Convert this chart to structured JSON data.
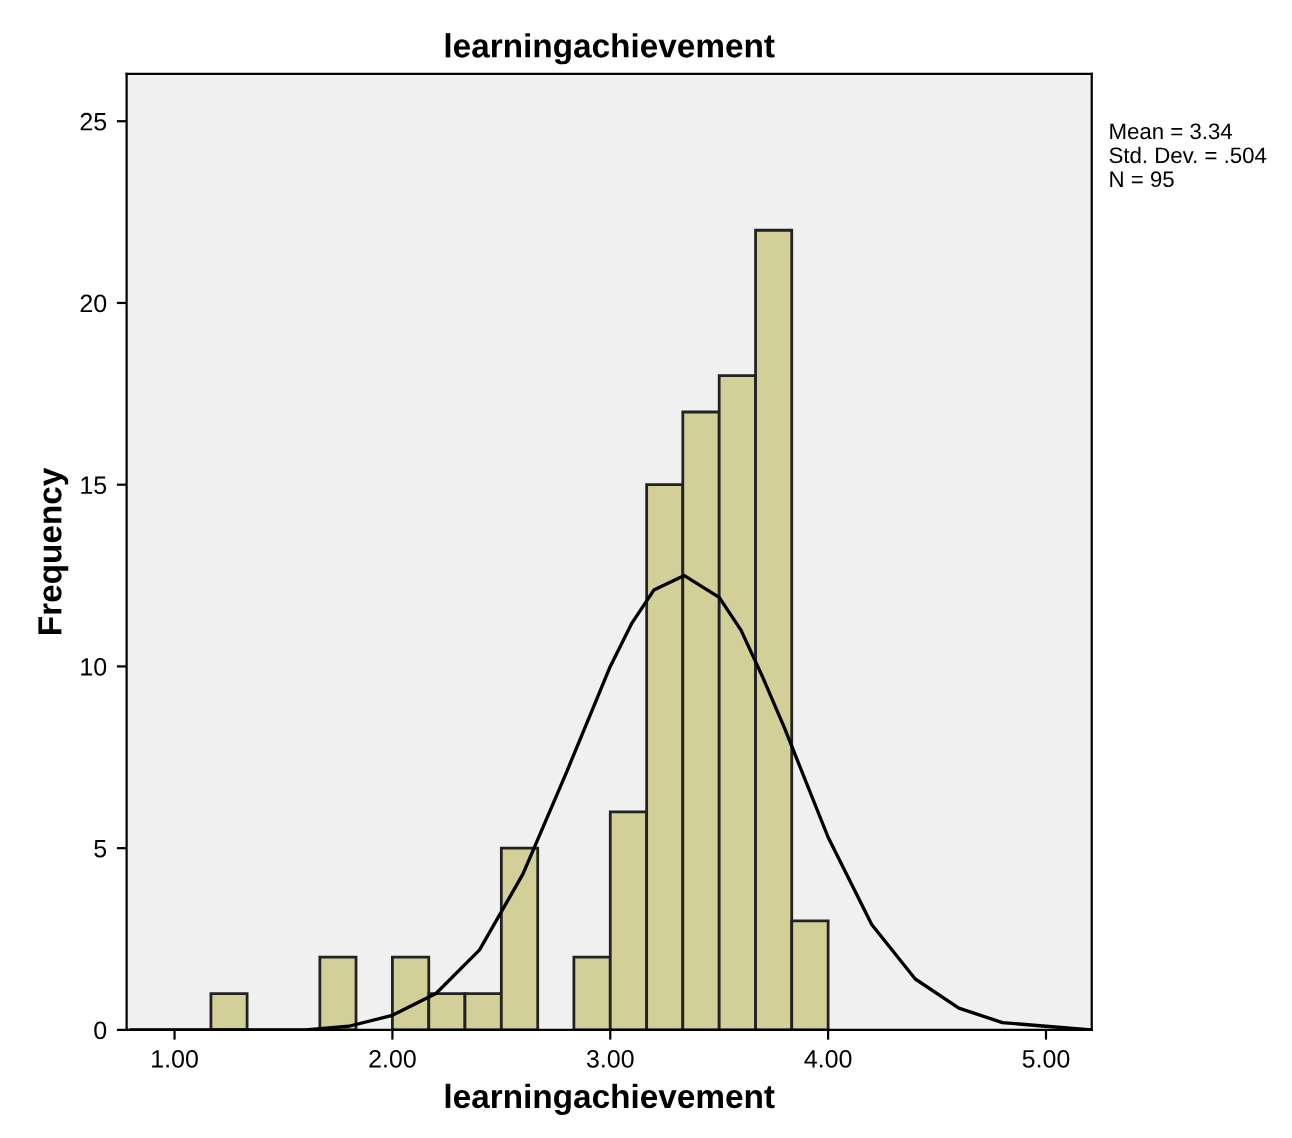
{
  "chart_data": {
    "type": "histogram",
    "title": "learningachievement",
    "xlabel": "learningachievement",
    "ylabel": "Frequency",
    "xlim": [
      0.78,
      5.21
    ],
    "ylim": [
      0,
      26.3
    ],
    "xticks": [
      {
        "value": 1,
        "label": "1.00"
      },
      {
        "value": 2,
        "label": "2.00"
      },
      {
        "value": 3,
        "label": "3.00"
      },
      {
        "value": 4,
        "label": "4.00"
      },
      {
        "value": 5,
        "label": "5.00"
      }
    ],
    "yticks": [
      0,
      5,
      10,
      15,
      20,
      25
    ],
    "grid": false,
    "series": [
      {
        "color": "#d3cf98",
        "bins": [
          1.167,
          1.333,
          1.5,
          1.667,
          1.833,
          2.0,
          2.167,
          2.333,
          2.5,
          2.667,
          2.833,
          3.0,
          3.167,
          3.333,
          3.5,
          3.667,
          3.833,
          4.0
        ],
        "values": [
          1,
          0,
          0,
          2,
          0,
          2,
          1,
          1,
          5,
          0,
          2,
          6,
          15,
          17,
          18,
          22,
          3
        ]
      },
      {
        "type": "line",
        "color": "#000000",
        "x": [
          0.8,
          1.3,
          1.6,
          1.8,
          2.0,
          2.2,
          2.4,
          2.6,
          2.8,
          3.0,
          3.1,
          3.2,
          3.34,
          3.5,
          3.6,
          3.7,
          3.8,
          4.0,
          4.2,
          4.4,
          4.6,
          4.8,
          5.0,
          5.2
        ],
        "values": [
          0,
          0,
          0,
          0.1,
          0.4,
          1.0,
          2.2,
          4.3,
          7.1,
          10.0,
          11.2,
          12.1,
          12.5,
          11.9,
          11.0,
          9.7,
          8.3,
          5.3,
          2.9,
          1.4,
          0.6,
          0.2,
          0.1,
          0
        ]
      }
    ],
    "annotations": [
      "Mean = 3.34\nStd. Dev. = .504\nN = 95"
    ]
  }
}
